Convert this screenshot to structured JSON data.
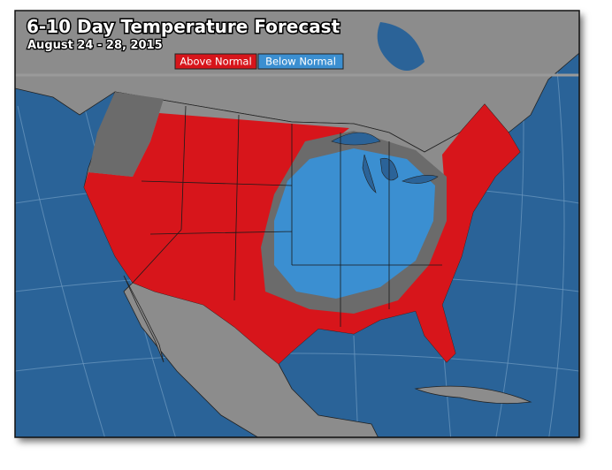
{
  "header": {
    "title": "6-10 Day Temperature Forecast",
    "subtitle": "August 24 - 28, 2015"
  },
  "legend": {
    "items": [
      {
        "label": "Above Normal",
        "color": "#d7151b"
      },
      {
        "label": "Below Normal",
        "color": "#3b8fd1"
      }
    ]
  }
}
